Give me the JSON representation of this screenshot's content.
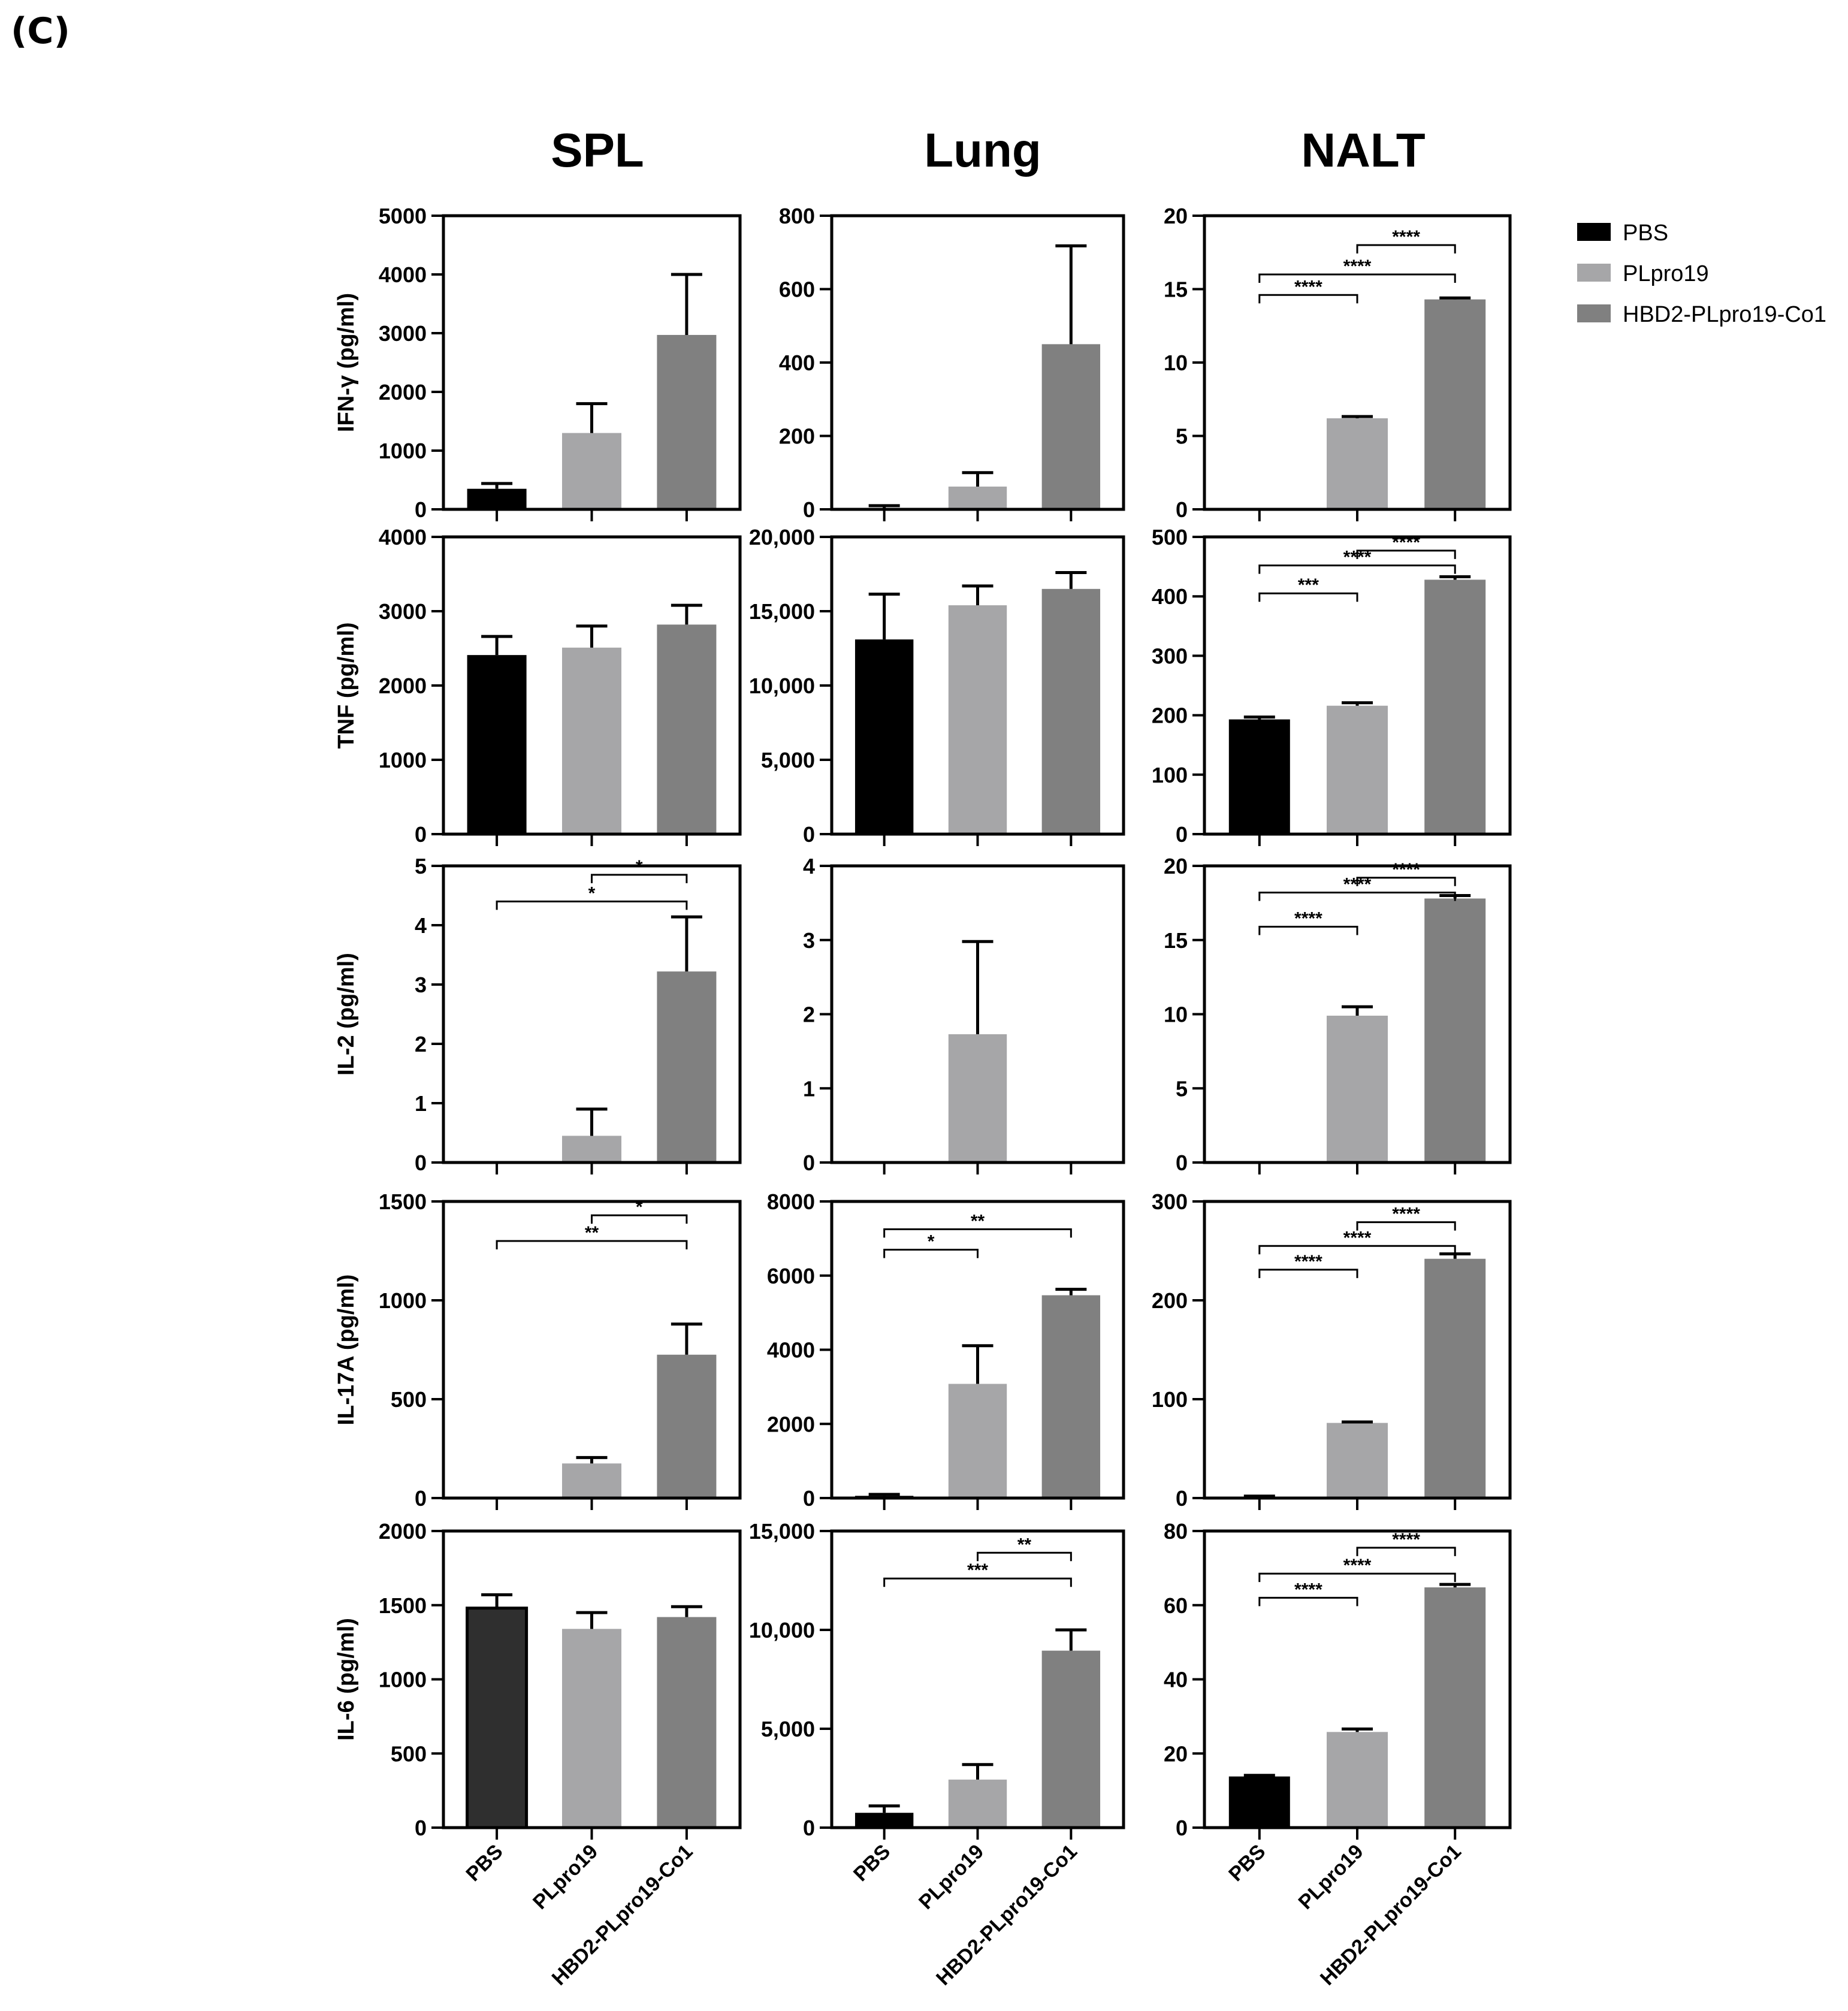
{
  "panel_label": "(C)",
  "column_titles": [
    "SPL",
    "Lung",
    "NALT"
  ],
  "legend": {
    "items": [
      {
        "label": "PBS",
        "color": "#000000"
      },
      {
        "label": "PLpro19",
        "color": "#a6a6a8"
      },
      {
        "label": "HBD2-PLpro19-Co1",
        "color": "#808080"
      }
    ]
  },
  "x_tick_labels": [
    "PBS",
    "PLpro19",
    "HBD2-PLpro19-Co1"
  ],
  "colors": {
    "PBS": "#000000",
    "PLpro19": "#a6a6a8",
    "HBD2-PLpro19-Co1": "#808080",
    "PBS_IL6_SPL": "#2f2f2f"
  },
  "chart_data": [
    {
      "type": "bar",
      "row": 0,
      "col": 0,
      "column": "SPL",
      "ylabel": "IFN-γ (pg/ml)",
      "ylim": [
        0,
        5000
      ],
      "ticks": [
        0,
        1000,
        2000,
        3000,
        4000,
        5000
      ],
      "tick_labels": [
        "0",
        "1000",
        "2000",
        "3000",
        "4000",
        "5000"
      ],
      "categories": [
        "PBS",
        "PLpro19",
        "HBD2-PLpro19-Co1"
      ],
      "values": [
        350,
        1300,
        2970
      ],
      "errors": [
        90,
        500,
        1030
      ],
      "significance": []
    },
    {
      "type": "bar",
      "row": 0,
      "col": 1,
      "column": "Lung",
      "ylabel": "",
      "ylim": [
        0,
        800
      ],
      "ticks": [
        0,
        200,
        400,
        600,
        800
      ],
      "tick_labels": [
        "0",
        "200",
        "400",
        "600",
        "800"
      ],
      "categories": [
        "PBS",
        "PLpro19",
        "HBD2-PLpro19-Co1"
      ],
      "values": [
        2,
        62,
        450
      ],
      "errors": [
        8,
        38,
        268
      ],
      "significance": []
    },
    {
      "type": "bar",
      "row": 0,
      "col": 2,
      "column": "NALT",
      "ylabel": "",
      "ylim": [
        0,
        20
      ],
      "ticks": [
        0,
        5,
        10,
        15,
        20
      ],
      "tick_labels": [
        "0",
        "5",
        "10",
        "15",
        "20"
      ],
      "categories": [
        "PBS",
        "PLpro19",
        "HBD2-PLpro19-Co1"
      ],
      "values": [
        0,
        6.2,
        14.3
      ],
      "errors": [
        0,
        0.12,
        0.1
      ],
      "significance": [
        {
          "from": 1,
          "to": 2,
          "y": 18.0,
          "label": "****"
        },
        {
          "from": 0,
          "to": 2,
          "y": 16.0,
          "label": "****"
        },
        {
          "from": 0,
          "to": 1,
          "y": 14.6,
          "label": "****"
        }
      ]
    },
    {
      "type": "bar",
      "row": 1,
      "col": 0,
      "column": "SPL",
      "ylabel": "TNF (pg/ml)",
      "ylim": [
        0,
        4000
      ],
      "ticks": [
        0,
        1000,
        2000,
        3000,
        4000
      ],
      "tick_labels": [
        "0",
        "1000",
        "2000",
        "3000",
        "4000"
      ],
      "categories": [
        "PBS",
        "PLpro19",
        "HBD2-PLpro19-Co1"
      ],
      "values": [
        2410,
        2510,
        2820
      ],
      "errors": [
        250,
        290,
        260
      ],
      "significance": []
    },
    {
      "type": "bar",
      "row": 1,
      "col": 1,
      "column": "Lung",
      "ylabel": "",
      "ylim": [
        0,
        20000
      ],
      "ticks": [
        0,
        5000,
        10000,
        15000,
        20000
      ],
      "tick_labels": [
        "0",
        "5,000",
        "10,000",
        "15,000",
        "20,000"
      ],
      "categories": [
        "PBS",
        "PLpro19",
        "HBD2-PLpro19-Co1"
      ],
      "values": [
        13100,
        15400,
        16500
      ],
      "errors": [
        3050,
        1300,
        1100
      ],
      "significance": []
    },
    {
      "type": "bar",
      "row": 1,
      "col": 2,
      "column": "NALT",
      "ylabel": "",
      "ylim": [
        0,
        500
      ],
      "ticks": [
        0,
        100,
        200,
        300,
        400,
        500
      ],
      "tick_labels": [
        "0",
        "100",
        "200",
        "300",
        "400",
        "500"
      ],
      "categories": [
        "PBS",
        "PLpro19",
        "HBD2-PLpro19-Co1"
      ],
      "values": [
        193,
        216,
        428
      ],
      "errors": [
        4,
        5,
        5
      ],
      "significance": [
        {
          "from": 1,
          "to": 2,
          "y": 477,
          "label": "****"
        },
        {
          "from": 0,
          "to": 2,
          "y": 452,
          "label": "****"
        },
        {
          "from": 0,
          "to": 1,
          "y": 405,
          "label": "***"
        }
      ]
    },
    {
      "type": "bar",
      "row": 2,
      "col": 0,
      "column": "SPL",
      "ylabel": "IL-2 (pg/ml)",
      "ylim": [
        0,
        5
      ],
      "ticks": [
        0,
        1,
        2,
        3,
        4,
        5
      ],
      "tick_labels": [
        "0",
        "1",
        "2",
        "3",
        "4",
        "5"
      ],
      "categories": [
        "PBS",
        "PLpro19",
        "HBD2-PLpro19-Co1"
      ],
      "values": [
        0,
        0.45,
        3.22
      ],
      "errors": [
        0,
        0.45,
        0.92
      ],
      "significance": [
        {
          "from": 1,
          "to": 2,
          "y": 4.85,
          "label": "*"
        },
        {
          "from": 0,
          "to": 2,
          "y": 4.4,
          "label": "*"
        }
      ]
    },
    {
      "type": "bar",
      "row": 2,
      "col": 1,
      "column": "Lung",
      "ylabel": "",
      "ylim": [
        0,
        4
      ],
      "ticks": [
        0,
        1,
        2,
        3,
        4
      ],
      "tick_labels": [
        "0",
        "1",
        "2",
        "3",
        "4"
      ],
      "categories": [
        "PBS",
        "PLpro19",
        "HBD2-PLpro19-Co1"
      ],
      "values": [
        0,
        1.73,
        0
      ],
      "errors": [
        0,
        1.25,
        0
      ],
      "significance": []
    },
    {
      "type": "bar",
      "row": 2,
      "col": 2,
      "column": "NALT",
      "ylabel": "",
      "ylim": [
        0,
        20
      ],
      "ticks": [
        0,
        5,
        10,
        15,
        20
      ],
      "tick_labels": [
        "0",
        "5",
        "10",
        "15",
        "20"
      ],
      "categories": [
        "PBS",
        "PLpro19",
        "HBD2-PLpro19-Co1"
      ],
      "values": [
        0,
        9.9,
        17.8
      ],
      "errors": [
        0,
        0.6,
        0.2
      ],
      "significance": [
        {
          "from": 1,
          "to": 2,
          "y": 19.2,
          "label": "****"
        },
        {
          "from": 0,
          "to": 2,
          "y": 18.2,
          "label": "****"
        },
        {
          "from": 0,
          "to": 1,
          "y": 15.9,
          "label": "****"
        }
      ]
    },
    {
      "type": "bar",
      "row": 3,
      "col": 0,
      "column": "SPL",
      "ylabel": "IL-17A (pg/ml)",
      "ylim": [
        0,
        1500
      ],
      "ticks": [
        0,
        500,
        1000,
        1500
      ],
      "tick_labels": [
        "0",
        "500",
        "1000",
        "1500"
      ],
      "categories": [
        "PBS",
        "PLpro19",
        "HBD2-PLpro19-Co1"
      ],
      "values": [
        0,
        175,
        725
      ],
      "errors": [
        0,
        30,
        155
      ],
      "significance": [
        {
          "from": 1,
          "to": 2,
          "y": 1430,
          "label": "*"
        },
        {
          "from": 0,
          "to": 2,
          "y": 1300,
          "label": "**"
        }
      ]
    },
    {
      "type": "bar",
      "row": 3,
      "col": 1,
      "column": "Lung",
      "ylabel": "",
      "ylim": [
        0,
        8000
      ],
      "ticks": [
        0,
        2000,
        4000,
        6000,
        8000
      ],
      "tick_labels": [
        "0",
        "2000",
        "4000",
        "6000",
        "8000"
      ],
      "categories": [
        "PBS",
        "PLpro19",
        "HBD2-PLpro19-Co1"
      ],
      "values": [
        60,
        3080,
        5470
      ],
      "errors": [
        40,
        1030,
        160
      ],
      "significance": [
        {
          "from": 0,
          "to": 2,
          "y": 7250,
          "label": "**"
        },
        {
          "from": 0,
          "to": 1,
          "y": 6700,
          "label": "*"
        }
      ]
    },
    {
      "type": "bar",
      "row": 3,
      "col": 2,
      "column": "NALT",
      "ylabel": "",
      "ylim": [
        0,
        300
      ],
      "ticks": [
        0,
        100,
        200,
        300
      ],
      "tick_labels": [
        "0",
        "100",
        "200",
        "300"
      ],
      "categories": [
        "PBS",
        "PLpro19",
        "HBD2-PLpro19-Co1"
      ],
      "values": [
        1,
        76,
        242
      ],
      "errors": [
        1,
        1,
        5
      ],
      "significance": [
        {
          "from": 1,
          "to": 2,
          "y": 279,
          "label": "****"
        },
        {
          "from": 0,
          "to": 2,
          "y": 255,
          "label": "****"
        },
        {
          "from": 0,
          "to": 1,
          "y": 231,
          "label": "****"
        }
      ]
    },
    {
      "type": "bar",
      "row": 4,
      "col": 0,
      "column": "SPL",
      "ylabel": "IL-6 (pg/ml)",
      "ylim": [
        0,
        2000
      ],
      "ticks": [
        0,
        500,
        1000,
        1500,
        2000
      ],
      "tick_labels": [
        "0",
        "500",
        "1000",
        "1500",
        "2000"
      ],
      "categories": [
        "PBS",
        "PLpro19",
        "HBD2-PLpro19-Co1"
      ],
      "values": [
        1480,
        1340,
        1420
      ],
      "errors": [
        90,
        110,
        70
      ],
      "significance": []
    },
    {
      "type": "bar",
      "row": 4,
      "col": 1,
      "column": "Lung",
      "ylabel": "",
      "ylim": [
        0,
        15000
      ],
      "ticks": [
        0,
        5000,
        10000,
        15000
      ],
      "tick_labels": [
        "0",
        "5,000",
        "10,000",
        "15,000"
      ],
      "categories": [
        "PBS",
        "PLpro19",
        "HBD2-PLpro19-Co1"
      ],
      "values": [
        750,
        2430,
        8950
      ],
      "errors": [
        350,
        760,
        1050
      ],
      "significance": [
        {
          "from": 1,
          "to": 2,
          "y": 13900,
          "label": "**"
        },
        {
          "from": 0,
          "to": 2,
          "y": 12600,
          "label": "***"
        }
      ]
    },
    {
      "type": "bar",
      "row": 4,
      "col": 2,
      "column": "NALT",
      "ylabel": "",
      "ylim": [
        0,
        80
      ],
      "ticks": [
        0,
        20,
        40,
        60,
        80
      ],
      "tick_labels": [
        "0",
        "20",
        "40",
        "60",
        "80"
      ],
      "categories": [
        "PBS",
        "PLpro19",
        "HBD2-PLpro19-Co1"
      ],
      "values": [
        13.8,
        25.8,
        64.8
      ],
      "errors": [
        0.3,
        0.8,
        0.8
      ],
      "significance": [
        {
          "from": 1,
          "to": 2,
          "y": 75.5,
          "label": "****"
        },
        {
          "from": 0,
          "to": 2,
          "y": 68.5,
          "label": "****"
        },
        {
          "from": 0,
          "to": 1,
          "y": 62,
          "label": "****"
        }
      ]
    }
  ]
}
